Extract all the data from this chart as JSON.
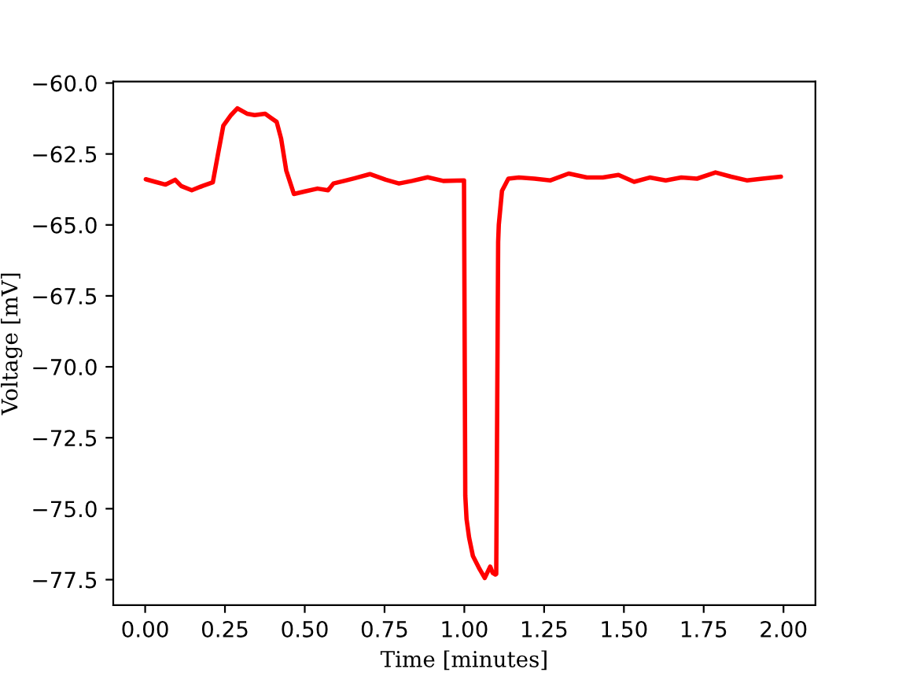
{
  "chart_data": {
    "type": "line",
    "xlabel": "Time [minutes]",
    "ylabel": "Voltage [mV]",
    "color": "#ff0000",
    "x": [
      0.002,
      0.031,
      0.064,
      0.094,
      0.113,
      0.146,
      0.179,
      0.212,
      0.228,
      0.245,
      0.269,
      0.289,
      0.319,
      0.343,
      0.376,
      0.393,
      0.412,
      0.426,
      0.442,
      0.466,
      0.5,
      0.54,
      0.573,
      0.59,
      0.623,
      0.655,
      0.704,
      0.754,
      0.795,
      0.836,
      0.885,
      0.934,
      0.999,
      1.003,
      1.007,
      1.015,
      1.027,
      1.048,
      1.064,
      1.081,
      1.089,
      1.097,
      1.1,
      1.106,
      1.108,
      1.118,
      1.138,
      1.171,
      1.22,
      1.27,
      1.327,
      1.384,
      1.434,
      1.483,
      1.532,
      1.581,
      1.631,
      1.68,
      1.729,
      1.787,
      1.836,
      1.885,
      1.934,
      1.992
    ],
    "values": [
      -63.39,
      -63.48,
      -63.58,
      -63.41,
      -63.63,
      -63.78,
      -63.63,
      -63.5,
      -62.52,
      -61.5,
      -61.13,
      -60.89,
      -61.08,
      -61.13,
      -61.08,
      -61.22,
      -61.37,
      -61.96,
      -63.08,
      -63.91,
      -63.82,
      -63.72,
      -63.78,
      -63.54,
      -63.45,
      -63.36,
      -63.21,
      -63.41,
      -63.54,
      -63.45,
      -63.32,
      -63.45,
      -63.43,
      -74.54,
      -75.37,
      -76.02,
      -76.67,
      -77.13,
      -77.44,
      -77.04,
      -77.26,
      -77.32,
      -77.3,
      -65.6,
      -65.0,
      -63.8,
      -63.37,
      -63.33,
      -63.37,
      -63.43,
      -63.19,
      -63.33,
      -63.33,
      -63.24,
      -63.48,
      -63.33,
      -63.43,
      -63.33,
      -63.37,
      -63.15,
      -63.3,
      -63.43,
      -63.37,
      -63.3
    ],
    "xlim": [
      -0.1,
      2.1
    ],
    "ylim": [
      -78.4,
      -59.95
    ],
    "xticks": [
      {
        "value": 0,
        "label": "0.00"
      },
      {
        "value": 0.25,
        "label": "0.25"
      },
      {
        "value": 0.5,
        "label": "0.50"
      },
      {
        "value": 0.75,
        "label": "0.75"
      },
      {
        "value": 1,
        "label": "1.00"
      },
      {
        "value": 1.25,
        "label": "1.25"
      },
      {
        "value": 1.5,
        "label": "1.50"
      },
      {
        "value": 1.75,
        "label": "1.75"
      },
      {
        "value": 2,
        "label": "2.00"
      }
    ],
    "yticks": [
      {
        "value": -60,
        "label": "−60.0"
      },
      {
        "value": -62.5,
        "label": "−62.5"
      },
      {
        "value": -65,
        "label": "−65.0"
      },
      {
        "value": -67.5,
        "label": "−67.5"
      },
      {
        "value": -70,
        "label": "−70.0"
      },
      {
        "value": -72.5,
        "label": "−72.5"
      },
      {
        "value": -75,
        "label": "−75.0"
      },
      {
        "value": -77.5,
        "label": "−77.5"
      }
    ]
  }
}
